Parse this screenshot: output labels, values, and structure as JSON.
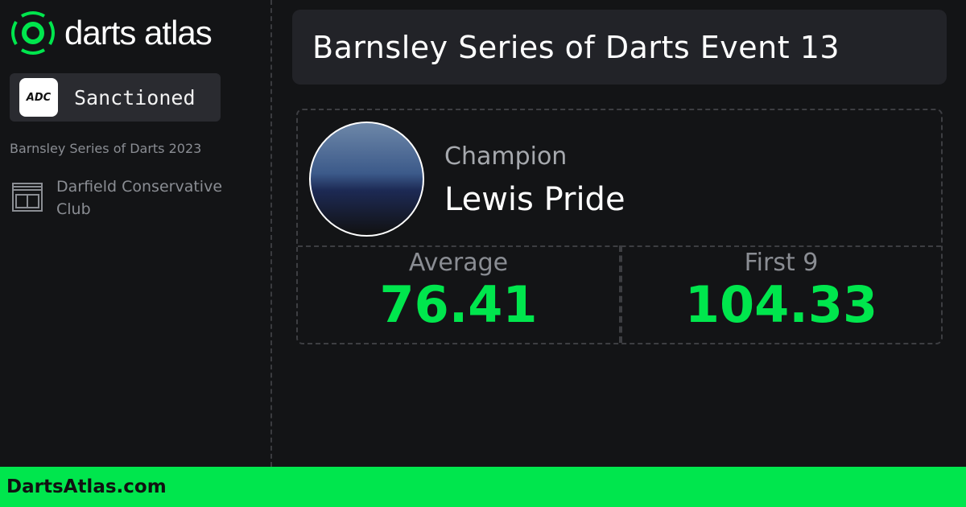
{
  "brand": {
    "name": "darts atlas",
    "accent": "#00e64d"
  },
  "sidebar": {
    "sanction_logo": "ADC",
    "sanction_label": "Sanctioned",
    "series": "Barnsley Series of Darts 2023",
    "venue": "Darfield Conservative Club",
    "venue_icon": "building-icon"
  },
  "event": {
    "title": "Barnsley Series of Darts Event 13"
  },
  "champion": {
    "label": "Champion",
    "name": "Lewis Pride"
  },
  "stats": [
    {
      "label": "Average",
      "value": "76.41"
    },
    {
      "label": "First 9",
      "value": "104.33"
    }
  ],
  "footer": {
    "site": "DartsAtlas.com"
  }
}
